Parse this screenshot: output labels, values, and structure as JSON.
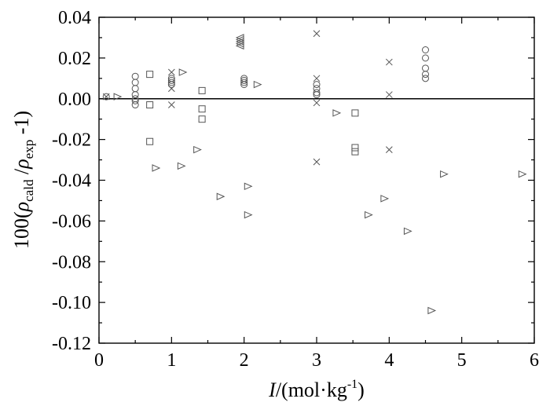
{
  "chart_data": {
    "type": "scatter",
    "title": "",
    "xlabel": {
      "italic": "I",
      "text": "/(mol·kg",
      "sup": "-1",
      "close": ")"
    },
    "ylabel": {
      "prefix": "100(",
      "rho1": "ρ",
      "sub1": "cald",
      "slash": " /",
      "rho2": "ρ",
      "sub2": "exp",
      "suffix": " -1)"
    },
    "xlim": [
      0,
      6
    ],
    "ylim": [
      -0.12,
      0.04
    ],
    "x_ticks": [
      0,
      1,
      2,
      3,
      4,
      5,
      6
    ],
    "x_tick_labels": [
      "0",
      "1",
      "2",
      "3",
      "4",
      "5",
      "6"
    ],
    "y_ticks": [
      -0.12,
      -0.1,
      -0.08,
      -0.06,
      -0.04,
      -0.02,
      0.0,
      0.02,
      0.04
    ],
    "y_tick_labels": [
      "-0.12",
      "-0.10",
      "-0.08",
      "-0.06",
      "-0.04",
      "-0.02",
      "0.00",
      "0.02",
      "0.04"
    ],
    "reference_line_y": 0,
    "grid": false,
    "series": [
      {
        "marker": "circle",
        "points": [
          [
            0.1,
            0.001
          ],
          [
            0.5,
            0.011
          ],
          [
            0.5,
            0.008
          ],
          [
            0.5,
            0.005
          ],
          [
            0.5,
            0.002
          ],
          [
            0.5,
            0.0
          ],
          [
            0.5,
            -0.001
          ],
          [
            0.5,
            -0.003
          ],
          [
            1.0,
            0.01
          ],
          [
            1.0,
            0.009
          ],
          [
            1.0,
            0.008
          ],
          [
            1.0,
            0.007
          ],
          [
            2.0,
            0.01
          ],
          [
            2.0,
            0.009
          ],
          [
            2.0,
            0.008
          ],
          [
            2.0,
            0.007
          ],
          [
            3.0,
            0.007
          ],
          [
            3.0,
            0.005
          ],
          [
            3.0,
            0.003
          ],
          [
            3.0,
            0.002
          ],
          [
            4.5,
            0.024
          ],
          [
            4.5,
            0.02
          ],
          [
            4.5,
            0.015
          ],
          [
            4.5,
            0.012
          ],
          [
            4.5,
            0.01
          ]
        ]
      },
      {
        "marker": "square",
        "points": [
          [
            0.7,
            0.012
          ],
          [
            0.7,
            -0.003
          ],
          [
            0.7,
            -0.021
          ],
          [
            1.42,
            0.004
          ],
          [
            1.42,
            -0.005
          ],
          [
            1.42,
            -0.01
          ],
          [
            3.53,
            -0.007
          ],
          [
            3.53,
            -0.024
          ],
          [
            3.53,
            -0.026
          ]
        ]
      },
      {
        "marker": "cross",
        "points": [
          [
            0.1,
            0.001
          ],
          [
            1.0,
            0.013
          ],
          [
            1.0,
            0.005
          ],
          [
            1.0,
            -0.003
          ],
          [
            3.0,
            0.032
          ],
          [
            3.0,
            0.01
          ],
          [
            3.0,
            -0.002
          ],
          [
            3.0,
            -0.031
          ],
          [
            4.0,
            0.018
          ],
          [
            4.0,
            0.002
          ],
          [
            4.0,
            -0.025
          ]
        ]
      },
      {
        "marker": "triangle-left",
        "points": [
          [
            1.95,
            0.03
          ],
          [
            1.95,
            0.029
          ],
          [
            1.95,
            0.028
          ],
          [
            1.95,
            0.027
          ],
          [
            1.95,
            0.026
          ]
        ]
      },
      {
        "marker": "triangle-right",
        "points": [
          [
            0.25,
            0.001
          ],
          [
            0.78,
            -0.034
          ],
          [
            1.13,
            -0.033
          ],
          [
            1.15,
            0.013
          ],
          [
            1.35,
            -0.025
          ],
          [
            1.67,
            -0.048
          ],
          [
            2.05,
            -0.043
          ],
          [
            2.05,
            -0.057
          ],
          [
            2.18,
            0.007
          ],
          [
            3.27,
            -0.007
          ],
          [
            3.71,
            -0.057
          ],
          [
            3.93,
            -0.049
          ],
          [
            4.25,
            -0.065
          ],
          [
            4.58,
            -0.104
          ],
          [
            4.75,
            -0.037
          ],
          [
            5.83,
            -0.037
          ]
        ]
      }
    ]
  }
}
